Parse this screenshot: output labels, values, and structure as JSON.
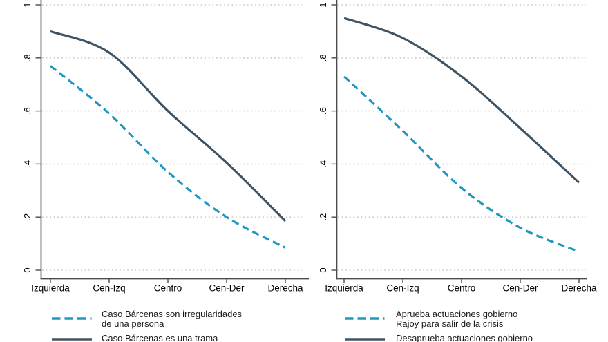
{
  "figure": {
    "colors": {
      "solid_series": "#3e5464",
      "dashed_series": "#2097c0",
      "grid": "#cccccc",
      "axis": "#4b4b4b",
      "tick_label": "#000000",
      "legend_text": "#1a1a1a"
    },
    "y_tick_labels": [
      "0",
      ".2",
      ".4",
      ".6",
      ".8",
      "1"
    ],
    "y_tick_values": [
      0,
      0.2,
      0.4,
      0.6,
      0.8,
      1
    ]
  },
  "chart_data": [
    {
      "type": "line",
      "title": "",
      "xlabel": "",
      "ylabel": "",
      "ylim": [
        0,
        1
      ],
      "grid": "horizontal-dotted",
      "legend_position": "below",
      "categories": [
        "Izquierda",
        "Cen-Izq",
        "Centro",
        "Cen-Der",
        "Derecha"
      ],
      "series": [
        {
          "name": "Caso Bárcenas son irregularidades de una persona",
          "style": "dashed",
          "values": [
            0.77,
            0.59,
            0.37,
            0.2,
            0.085
          ]
        },
        {
          "name": "Caso Bárcenas es una trama",
          "style": "solid",
          "values": [
            0.9,
            0.82,
            0.6,
            0.405,
            0.185
          ]
        }
      ],
      "legend": {
        "items": [
          {
            "marker": "dashed",
            "line1": "Caso Bárcenas son irregularidades",
            "line2": "de una persona",
            "clipped": false
          },
          {
            "marker": "solid",
            "line1": "Caso Bárcenas es una trama",
            "line2": "",
            "clipped": true
          }
        ]
      }
    },
    {
      "type": "line",
      "title": "",
      "xlabel": "",
      "ylabel": "",
      "ylim": [
        0,
        1
      ],
      "grid": "horizontal-dotted",
      "legend_position": "below",
      "categories": [
        "Izquierda",
        "Cen-Izq",
        "Centro",
        "Cen-Der",
        "Derecha"
      ],
      "series": [
        {
          "name": "Aprueba actuaciones gobierno Rajoy para salir de la crisis",
          "style": "dashed",
          "values": [
            0.73,
            0.525,
            0.31,
            0.16,
            0.07
          ]
        },
        {
          "name": "Desaprueba actuaciones gobierno",
          "style": "solid",
          "values": [
            0.95,
            0.875,
            0.73,
            0.535,
            0.33
          ]
        }
      ],
      "legend": {
        "items": [
          {
            "marker": "dashed",
            "line1": "Aprueba actuaciones gobierno",
            "line2": "Rajoy para salir de la crisis",
            "clipped": false
          },
          {
            "marker": "solid",
            "line1": "Desaprueba actuaciones gobierno",
            "line2": "",
            "clipped": true
          }
        ]
      }
    }
  ]
}
